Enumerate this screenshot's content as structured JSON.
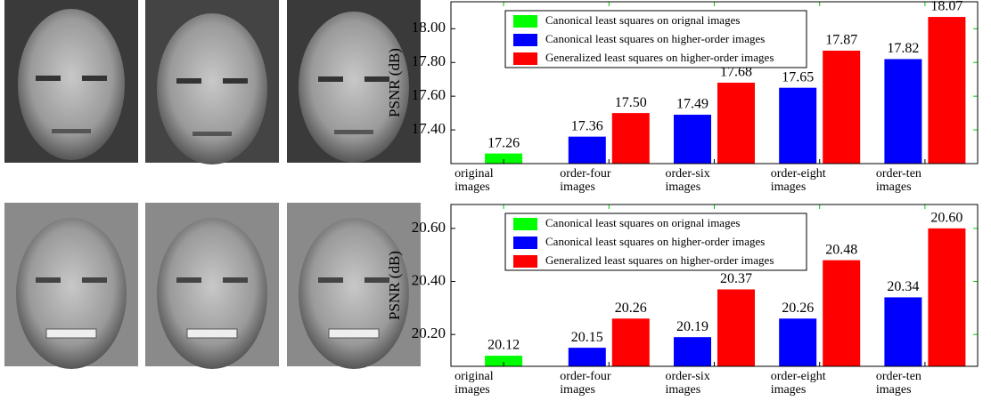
{
  "chart_data": [
    {
      "type": "bar",
      "y_label": "PSNR (dB)",
      "legend": "upper left",
      "grid": false,
      "categories": [
        [
          "original",
          "images"
        ],
        [
          "order-four",
          "images"
        ],
        [
          "order-six",
          "images"
        ],
        [
          "order-eight",
          "images"
        ],
        [
          "order-ten",
          "images"
        ]
      ],
      "series": [
        {
          "name": "Canonical least squares on orignal images",
          "color": "#00ff00",
          "values": [
            17.26,
            null,
            null,
            null,
            null
          ],
          "value_labels": [
            "17.26",
            null,
            null,
            null,
            null
          ]
        },
        {
          "name": "Canonical least squares on higher-order images",
          "color": "#0000ff",
          "values": [
            null,
            17.36,
            17.49,
            17.65,
            17.82
          ],
          "value_labels": [
            null,
            "17.36",
            "17.49",
            "17.65",
            "17.82"
          ]
        },
        {
          "name": "Generalized least squares on higher-order images",
          "color": "#ff0000",
          "values": [
            null,
            17.5,
            17.68,
            17.87,
            18.07
          ],
          "value_labels": [
            null,
            "17.50",
            "17.68",
            "17.87",
            "18.07"
          ]
        }
      ],
      "ylim": [
        17.2,
        18.16
      ],
      "yticks": [
        {
          "value": 17.4,
          "label": "17.40"
        },
        {
          "value": 17.6,
          "label": "17.60"
        },
        {
          "value": 17.8,
          "label": "17.80"
        },
        {
          "value": 18.0,
          "label": "18.00"
        }
      ]
    },
    {
      "type": "bar",
      "y_label": "PSNR (dB)",
      "legend": "upper left",
      "grid": false,
      "categories": [
        [
          "original",
          "images"
        ],
        [
          "order-four",
          "images"
        ],
        [
          "order-six",
          "images"
        ],
        [
          "order-eight",
          "images"
        ],
        [
          "order-ten",
          "images"
        ]
      ],
      "series": [
        {
          "name": "Canonical least squares on orignal images",
          "color": "#00ff00",
          "values": [
            20.12,
            null,
            null,
            null,
            null
          ],
          "value_labels": [
            "20.12",
            null,
            null,
            null,
            null
          ]
        },
        {
          "name": "Canonical least squares on higher-order images",
          "color": "#0000ff",
          "values": [
            null,
            20.15,
            20.19,
            20.26,
            20.34
          ],
          "value_labels": [
            null,
            "20.15",
            "20.19",
            "20.26",
            "20.34"
          ]
        },
        {
          "name": "Generalized least squares on higher-order images",
          "color": "#ff0000",
          "values": [
            null,
            20.26,
            20.37,
            20.48,
            20.6
          ],
          "value_labels": [
            null,
            "20.26",
            "20.37",
            "20.48",
            "20.60"
          ]
        }
      ],
      "ylim": [
        20.08,
        20.69
      ],
      "yticks": [
        {
          "value": 20.2,
          "label": "20.20"
        },
        {
          "value": 20.4,
          "label": "20.40"
        },
        {
          "value": 20.6,
          "label": "20.60"
        }
      ]
    }
  ]
}
